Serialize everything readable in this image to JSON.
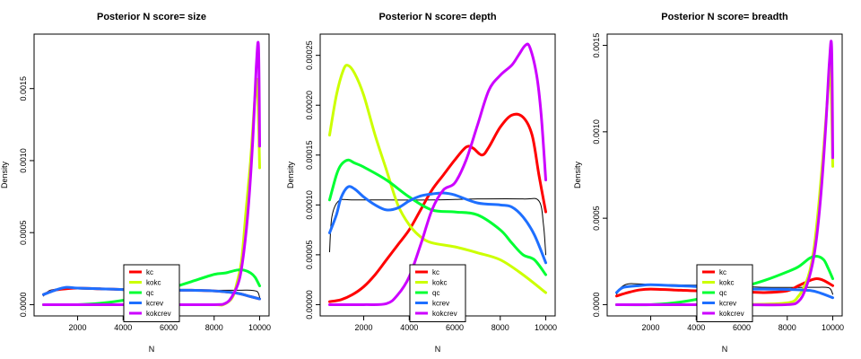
{
  "chart_data": [
    {
      "type": "line",
      "title": "Posterior N  score= size",
      "xlabel": "N",
      "ylabel": "Density",
      "xlim": [
        500,
        10000
      ],
      "ylim": [
        0,
        0.0018
      ],
      "xticks": [
        "2000",
        "4000",
        "6000",
        "8000",
        "10000"
      ],
      "yticks": [
        "0.0000",
        "0.0005",
        "0.0010",
        "0.0015"
      ],
      "legend_position": "bottom-center",
      "series": [
        {
          "name": "kc",
          "color": "#ff0000",
          "x": [
            500,
            1000,
            1500,
            2000,
            3000,
            4000,
            5000,
            6000,
            7000,
            8000,
            9000,
            9500,
            10000
          ],
          "y": [
            7e-05,
            0.0001,
            0.00011,
            0.000115,
            0.00011,
            0.000105,
            0.0001,
            0.0001,
            0.0001,
            9.5e-05,
            8e-05,
            6e-05,
            4e-05
          ]
        },
        {
          "name": "kokc",
          "color": "#ccff00",
          "x": [
            500,
            2000,
            4000,
            6000,
            8000,
            8400,
            8800,
            9000,
            9200,
            9400,
            9600,
            9800,
            9900,
            10000
          ],
          "y": [
            0,
            0,
            0,
            0,
            0,
            0,
            5e-05,
            0.00015,
            0.0003,
            0.00065,
            0.001,
            0.00145,
            0.00153,
            0.00095
          ]
        },
        {
          "name": "qc",
          "color": "#00ff33",
          "x": [
            500,
            2000,
            3000,
            4000,
            5000,
            6000,
            7000,
            8000,
            8500,
            9000,
            9300,
            9600,
            9800,
            10000
          ],
          "y": [
            0,
            0,
            1e-05,
            3e-05,
            6e-05,
            0.00011,
            0.00016,
            0.00021,
            0.00022,
            0.00024,
            0.00024,
            0.00022,
            0.00019,
            0.00013
          ]
        },
        {
          "name": "kcrev",
          "color": "#1e6fff",
          "x": [
            500,
            1000,
            1500,
            2000,
            3000,
            4000,
            5000,
            6000,
            7000,
            8000,
            9000,
            9500,
            10000
          ],
          "y": [
            7e-05,
            0.0001,
            0.00012,
            0.000115,
            0.00011,
            0.000105,
            0.0001,
            0.0001,
            0.0001,
            9.5e-05,
            8e-05,
            6e-05,
            4e-05
          ]
        },
        {
          "name": "kokcrev",
          "color": "#cc00ff",
          "x": [
            500,
            2000,
            4000,
            6000,
            8000,
            8500,
            8800,
            9100,
            9300,
            9500,
            9700,
            9850,
            9950,
            10000
          ],
          "y": [
            0,
            0,
            0,
            0,
            0,
            1e-05,
            6e-05,
            0.00017,
            0.00036,
            0.00067,
            0.00115,
            0.00165,
            0.00179,
            0.0011
          ]
        },
        {
          "name": "",
          "color": "#000000",
          "thin": true,
          "x": [
            500,
            800,
            1500,
            3000,
            5000,
            7000,
            9000,
            9600,
            9900,
            10000
          ],
          "y": [
            6e-05,
            0.0001,
            0.00011,
            0.000105,
            0.000105,
            0.0001,
            0.0001,
            0.0001,
            9e-05,
            5e-05
          ]
        }
      ]
    },
    {
      "type": "line",
      "title": "Posterior N  score= depth",
      "xlabel": "N",
      "ylabel": "Density",
      "xlim": [
        500,
        10000
      ],
      "ylim": [
        0,
        0.00026
      ],
      "xticks": [
        "2000",
        "4000",
        "6000",
        "8000",
        "10000"
      ],
      "yticks": [
        "0.00000",
        "0.00005",
        "0.00010",
        "0.00015",
        "0.00020",
        "0.00025"
      ],
      "legend_position": "bottom-center",
      "series": [
        {
          "name": "kc",
          "color": "#ff0000",
          "x": [
            500,
            1000,
            1500,
            2000,
            2500,
            3000,
            3500,
            4000,
            4500,
            5000,
            5500,
            6000,
            6500,
            6800,
            7200,
            7500,
            8000,
            8500,
            9000,
            9400,
            9700,
            10000
          ],
          "y": [
            3e-06,
            5e-06,
            1e-05,
            1.8e-05,
            3e-05,
            4.5e-05,
            6e-05,
            7.5e-05,
            9.5e-05,
            0.000115,
            0.00013,
            0.000145,
            0.000158,
            0.000157,
            0.00015,
            0.000158,
            0.000178,
            0.00019,
            0.000188,
            0.00017,
            0.00013,
            9.3e-05
          ]
        },
        {
          "name": "kokc",
          "color": "#ccff00",
          "x": [
            500,
            800,
            1100,
            1300,
            1600,
            2000,
            2500,
            3000,
            3500,
            4000,
            4500,
            5000,
            6000,
            7000,
            8000,
            9000,
            10000
          ],
          "y": [
            0.00017,
            0.00021,
            0.000235,
            0.00024,
            0.000232,
            0.00021,
            0.00017,
            0.000135,
            0.0001,
            8e-05,
            6.8e-05,
            6.2e-05,
            5.8e-05,
            5.2e-05,
            4.5e-05,
            3e-05,
            1.2e-05
          ]
        },
        {
          "name": "qc",
          "color": "#00ff33",
          "x": [
            500,
            800,
            1000,
            1300,
            1600,
            2000,
            3000,
            4000,
            5000,
            6000,
            7000,
            8000,
            8500,
            9000,
            9500,
            10000
          ],
          "y": [
            0.000105,
            0.00013,
            0.00014,
            0.000145,
            0.000142,
            0.000138,
            0.000125,
            0.000108,
            9.5e-05,
            9.3e-05,
            9e-05,
            7.5e-05,
            6.2e-05,
            5e-05,
            4.5e-05,
            3e-05
          ]
        },
        {
          "name": "kcrev",
          "color": "#1e6fff",
          "x": [
            500,
            800,
            1000,
            1300,
            1600,
            2000,
            2500,
            3000,
            3500,
            4000,
            4500,
            5000,
            5500,
            6000,
            7000,
            8000,
            8500,
            9000,
            9500,
            10000
          ],
          "y": [
            7.2e-05,
            9e-05,
            0.000107,
            0.000118,
            0.000116,
            0.000108,
            0.0001,
            9.5e-05,
            9.7e-05,
            0.000104,
            0.000109,
            0.000111,
            0.000112,
            0.00011,
            0.000102,
            0.0001,
            9.8e-05,
            8.8e-05,
            7e-05,
            4.2e-05
          ]
        },
        {
          "name": "kokcrev",
          "color": "#cc00ff",
          "x": [
            500,
            2000,
            3000,
            3500,
            4000,
            4500,
            5000,
            5500,
            6000,
            6500,
            7000,
            7500,
            8000,
            8500,
            8800,
            9100,
            9300,
            9600,
            9800,
            10000
          ],
          "y": [
            0,
            0,
            1e-06,
            1e-05,
            2.8e-05,
            6e-05,
            9.5e-05,
            0.000115,
            0.000122,
            0.000145,
            0.00018,
            0.000215,
            0.00023,
            0.00024,
            0.00025,
            0.00026,
            0.000258,
            0.00023,
            0.00019,
            0.000125
          ]
        },
        {
          "name": "",
          "color": "#000000",
          "thin": true,
          "x": [
            500,
            600,
            900,
            1500,
            3000,
            5000,
            7000,
            9000,
            9700,
            9900,
            10000
          ],
          "y": [
            5.3e-05,
            8.8e-05,
            0.000104,
            0.000105,
            0.000105,
            0.000105,
            0.000106,
            0.000106,
            0.000104,
            8e-05,
            5e-05
          ]
        }
      ]
    },
    {
      "type": "line",
      "title": "Posterior N  score= breadth",
      "xlabel": "N",
      "ylabel": "Density",
      "xlim": [
        500,
        10000
      ],
      "ylim": [
        0,
        0.0015
      ],
      "xticks": [
        "2000",
        "4000",
        "6000",
        "8000",
        "10000"
      ],
      "yticks": [
        "0.0000",
        "0.0005",
        "0.0010",
        "0.0015"
      ],
      "legend_position": "bottom-center",
      "series": [
        {
          "name": "kc",
          "color": "#ff0000",
          "x": [
            500,
            1000,
            1500,
            2000,
            3000,
            4000,
            5000,
            6000,
            7000,
            8000,
            8500,
            9000,
            9300,
            9600,
            10000
          ],
          "y": [
            5e-05,
            7e-05,
            8.5e-05,
            9e-05,
            8.5e-05,
            8e-05,
            8e-05,
            7.5e-05,
            7e-05,
            8e-05,
            0.00011,
            0.00014,
            0.00015,
            0.00014,
            0.00011
          ]
        },
        {
          "name": "kokc",
          "color": "#ccff00",
          "x": [
            500,
            2000,
            4000,
            6000,
            8000,
            8500,
            8800,
            9000,
            9200,
            9400,
            9600,
            9800,
            9900,
            10000
          ],
          "y": [
            0,
            0,
            0,
            0,
            1e-05,
            5e-05,
            0.00012,
            0.0002,
            0.00035,
            0.0006,
            0.0009,
            0.00125,
            0.00138,
            0.0008
          ]
        },
        {
          "name": "qc",
          "color": "#00ff33",
          "x": [
            500,
            2000,
            3000,
            4000,
            5000,
            6000,
            7000,
            8000,
            8500,
            9000,
            9300,
            9600,
            9800,
            10000
          ],
          "y": [
            0,
            0,
            1e-05,
            3e-05,
            6e-05,
            0.0001,
            0.00014,
            0.00019,
            0.00022,
            0.00027,
            0.00028,
            0.00026,
            0.00021,
            0.00015
          ]
        },
        {
          "name": "kcrev",
          "color": "#1e6fff",
          "x": [
            500,
            800,
            1500,
            2000,
            3000,
            4000,
            5000,
            6000,
            7000,
            8000,
            9000,
            9500,
            10000
          ],
          "y": [
            7e-05,
            0.0001,
            0.00011,
            0.000115,
            0.00011,
            0.000105,
            9.5e-05,
            9e-05,
            9e-05,
            8.8e-05,
            8.2e-05,
            6.5e-05,
            4e-05
          ]
        },
        {
          "name": "kokcrev",
          "color": "#cc00ff",
          "x": [
            500,
            2000,
            4000,
            6000,
            8000,
            8500,
            8800,
            9100,
            9300,
            9500,
            9700,
            9850,
            9950,
            10000
          ],
          "y": [
            0,
            0,
            0,
            0,
            0,
            2e-05,
            9e-05,
            0.00023,
            0.0004,
            0.00067,
            0.00105,
            0.0014,
            0.00149,
            0.00085
          ]
        },
        {
          "name": "",
          "color": "#000000",
          "thin": true,
          "x": [
            500,
            700,
            1000,
            1500,
            3000,
            5000,
            7000,
            9000,
            9700,
            9900,
            10000
          ],
          "y": [
            6e-05,
            0.0001,
            0.00012,
            0.00012,
            0.000115,
            0.00011,
            0.0001,
            0.0001,
            0.0001,
            9e-05,
            6e-05
          ]
        }
      ]
    }
  ]
}
